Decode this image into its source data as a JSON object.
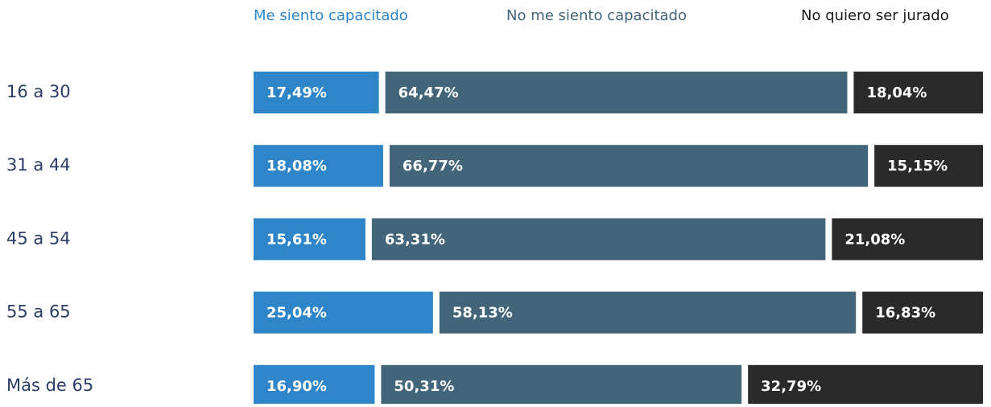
{
  "chart_data": {
    "type": "stacked-bar-horizontal",
    "categories": [
      "16 a 30",
      "31 a 44",
      "45 a 54",
      "55 a 65",
      "Más de 65"
    ],
    "series": [
      {
        "name": "Me siento capacitado",
        "color": "#2e86c8",
        "values": [
          17.49,
          18.08,
          15.61,
          25.04,
          16.9
        ],
        "value_labels": [
          "17,49%",
          "18,08%",
          "15,61%",
          "25,04%",
          "16,90%"
        ]
      },
      {
        "name": "No me siento capacitado",
        "color": "#426579",
        "values": [
          64.47,
          66.77,
          63.31,
          58.13,
          50.31
        ],
        "value_labels": [
          "64,47%",
          "66,77%",
          "63,31%",
          "58,13%",
          "50,31%"
        ]
      },
      {
        "name": "No quiero ser jurado",
        "color": "#2a2a2a",
        "values": [
          18.04,
          15.15,
          21.08,
          16.83,
          32.79
        ],
        "value_labels": [
          "18,04%",
          "15,15%",
          "21,08%",
          "16,83%",
          "32,79%"
        ]
      }
    ]
  }
}
